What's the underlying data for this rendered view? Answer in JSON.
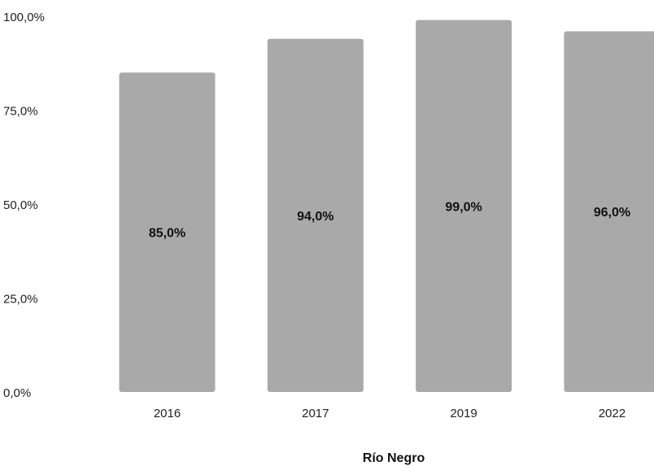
{
  "chart_data": {
    "type": "bar",
    "title": "",
    "xlabel": "Río Negro",
    "ylabel": "",
    "categories": [
      "2016",
      "2017",
      "2019",
      "2022"
    ],
    "values": [
      85.0,
      94.0,
      99.0,
      96.0
    ],
    "data_labels": [
      "85,0%",
      "94,0%",
      "99,0%",
      "96,0%"
    ],
    "ylim": [
      0,
      100
    ],
    "yticks": [
      0,
      25,
      50,
      75,
      100
    ],
    "ytick_labels": [
      "0,0%",
      "25,0%",
      "50,0%",
      "75,0%",
      "100,0%"
    ],
    "grid": false,
    "legend": "none",
    "bar_color": "#a9a9a9"
  }
}
